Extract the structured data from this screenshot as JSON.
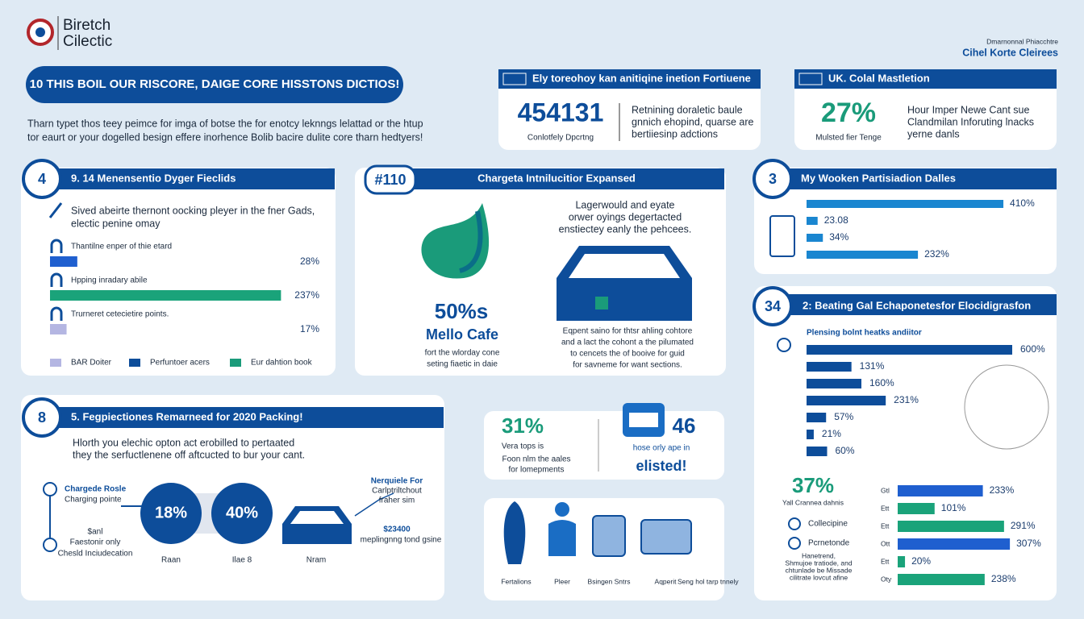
{
  "header": {
    "logo_line1": "Biretch",
    "logo_line2": "Cilectic",
    "tagline": "Dmarnonnal Phiacchtre",
    "brand": "Cihel Korte Cleirees"
  },
  "banner": {
    "title": "10 THIS BOIL OUR RISCORE, DAIGE CORE HISSTONS DICTIOS!",
    "intro": [
      "Tharn typet thos teey peimce for imga of botse the for enotcy leknngs lelattad or the htup",
      "tor eaurt or your dogelled besign effere inorhence Bolib bacire dulite core tharn hedtyers!"
    ]
  },
  "stat_cards": [
    {
      "header": "Ely toreohoy kan anitiqine inetion Fortiuene",
      "figure": "454131",
      "caption": "Conlotfely Dpcrtng",
      "text": [
        "Retnining doraletic baule",
        "gnnich ehopind, quarse are",
        "bertiiesinp adctions"
      ]
    },
    {
      "header": "UK. Colal Mastletion",
      "figure": "27%",
      "caption": "Mulsted fier Tenge",
      "text": [
        "Hour Imper Newe Cant sue",
        "Clandmilan Inforuting lnacks",
        "yerne danls"
      ]
    }
  ],
  "panel_4": {
    "number": "4",
    "title": "9. 14 Menensentio Dyger Fieclids",
    "intro": [
      "Sived abeirte thernont oocking pleyer in the fner Gads,",
      "electic penine omay"
    ],
    "bars": {
      "labels": [
        "Thantilne enper of thie etard",
        "Hpping inradary abile",
        "Trurneret cetecietire points."
      ],
      "values": [
        28,
        237,
        17
      ],
      "value_labels": [
        "28%",
        "237%",
        "17%"
      ],
      "colors": [
        "#1f5fcf",
        "#1aa37a",
        "#b4b6e2"
      ],
      "xlim": [
        0,
        240
      ]
    },
    "legend": [
      "BAR Doiter",
      "Perfuntoer acers",
      "Eur dahtion book"
    ]
  },
  "panel_center": {
    "badge": "#110",
    "title": "Chargeta Intnilucitior Expansed",
    "figure": "50%s",
    "name": "Mello Cafe",
    "caption": [
      "fort the wlorday cone",
      "seting fiaetic in daie"
    ],
    "top_text": [
      "Lagerwould and eyate",
      "orwer oyings degertacted",
      "enstiectey eanly the pehcees."
    ],
    "bottom_text": [
      "Eqpent saino for thtsr ahling cohtore",
      "and a lact the cohont a the pilumated",
      "to cencets the of booive for guid",
      "for savneme for want sections."
    ]
  },
  "panel_3": {
    "number": "3",
    "title": "My Wooken Partisiadion Dalles",
    "bars": {
      "values": [
        410,
        23.08,
        34,
        232
      ],
      "value_labels": [
        "410%",
        "23.08",
        "34%",
        "232%"
      ],
      "color": "#1a86d0",
      "xlim": [
        0,
        420
      ]
    }
  },
  "panel_34": {
    "number": "34",
    "title": "2: Beating Gal Echaponetesfor Elocidigrasfon",
    "subtitle": "Plensing bolnt heatks andiitor",
    "bars": {
      "values": [
        600,
        131,
        160,
        231,
        57,
        21,
        60
      ],
      "value_labels": [
        "600%",
        "131%",
        "160%",
        "231%",
        "57%",
        "21%",
        "60%"
      ],
      "color": "#0d4d9a",
      "xlim": [
        0,
        600
      ]
    },
    "figure": "37%",
    "caption": "Yall Crannea dahnis",
    "legend": [
      "Collecipine",
      "Pcrnetonde"
    ],
    "note": [
      "Hanetrend,",
      "Shmujoe tratiode, and",
      "chtunlade be Missade",
      "cilitrate lovcut afine"
    ],
    "rows": {
      "labels": [
        "Gtl",
        "Ett",
        "Ett",
        "Ott",
        "Ett",
        "Oty"
      ],
      "values": [
        233,
        101,
        291,
        307,
        20,
        238
      ],
      "value_labels": [
        "233%",
        "101%",
        "291%",
        "307%",
        "20%",
        "238%"
      ],
      "colors": [
        "#1f5fcf",
        "#1aa37a",
        "#1aa37a",
        "#1f5fcf",
        "#1aa37a",
        "#1aa37a"
      ],
      "xlim": [
        0,
        320
      ]
    }
  },
  "panel_8": {
    "number": "8",
    "title": "5. Fegpiectiones Remarneed for 2020 Packing!",
    "intro": [
      "Hlorth you elechic opton act erobilled to pertaated",
      "they the serfuctlenene off aftcucted to bur your cant."
    ],
    "left": [
      "Chargede Rosle",
      "Charging pointe",
      "$anl",
      "Faestonir only",
      "Chesld Inciudecation"
    ],
    "circles": [
      "18%",
      "40%"
    ],
    "under": [
      "Raan",
      "Ilae 8",
      "Nram"
    ],
    "right": [
      "Nerquiele For",
      "Carlptriltchout",
      "fraher sim",
      "$23400",
      "meplingnng tond gsine"
    ]
  },
  "small_stats": {
    "left_figure": "31%",
    "left_caption": "Vera tops is",
    "left_text": [
      "Foon nlm the aales",
      "for lomepments"
    ],
    "right_figure": "46",
    "right_caption": "hose orly ape in",
    "right_text": "elisted!"
  },
  "icons": {
    "labels": [
      "Fertalions",
      "Pleer",
      "Bsingen Sntrs",
      "Aqperit"
    ],
    "note": "Seng hol tarp tnnely"
  }
}
